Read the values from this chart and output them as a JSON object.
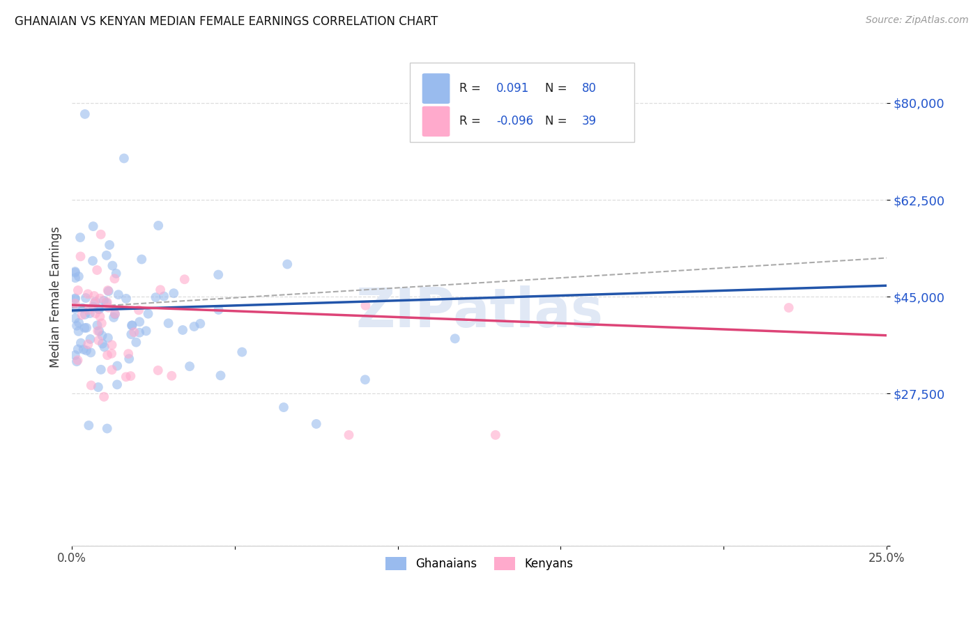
{
  "title": "GHANAIAN VS KENYAN MEDIAN FEMALE EARNINGS CORRELATION CHART",
  "source": "Source: ZipAtlas.com",
  "ylabel": "Median Female Earnings",
  "xlim": [
    0.0,
    0.25
  ],
  "ylim": [
    0,
    90000
  ],
  "ytick_vals": [
    0,
    27500,
    45000,
    62500,
    80000
  ],
  "ytick_labels": [
    "",
    "$27,500",
    "$45,000",
    "$62,500",
    "$80,000"
  ],
  "xtick_vals": [
    0.0,
    0.05,
    0.1,
    0.15,
    0.2,
    0.25
  ],
  "xtick_labels": [
    "0.0%",
    "",
    "",
    "",
    "",
    "25.0%"
  ],
  "r_ghanaian": 0.091,
  "n_ghanaian": 80,
  "r_kenyan": -0.096,
  "n_kenyan": 39,
  "color_ghanaian": "#99BBEE",
  "color_kenyan": "#FFAACC",
  "line_color_ghanaian": "#2255AA",
  "line_color_kenyan": "#DD4477",
  "line_color_dash": "#AAAAAA",
  "watermark": "ZIPatlas",
  "background_color": "#FFFFFF",
  "grid_color": "#DDDDDD",
  "title_color": "#111111",
  "source_color": "#999999",
  "tick_color_right": "#2255CC",
  "legend_r_color": "#2255CC",
  "scatter_alpha": 0.6,
  "scatter_size": 100,
  "blue_line_y0": 42500,
  "blue_line_y1": 47000,
  "pink_line_y0": 43500,
  "pink_line_y1": 38000,
  "dash_line_y0": 43000,
  "dash_line_y1": 52000
}
